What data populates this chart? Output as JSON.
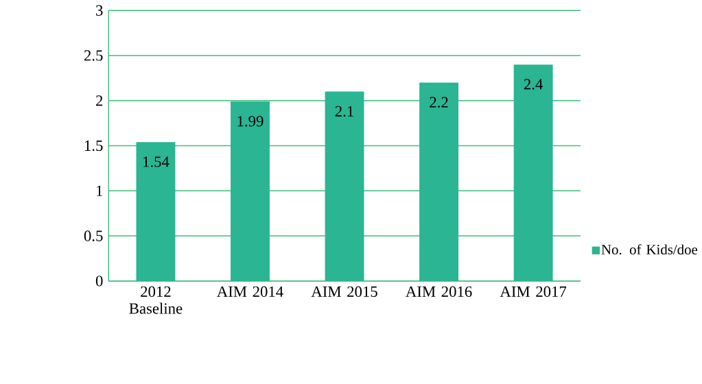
{
  "chart_data": {
    "type": "bar",
    "categories": [
      "2012 Baseline",
      "AIM 2014",
      "AIM 2015",
      "AIM 2016",
      "AIM 2017"
    ],
    "series": [
      {
        "name": "No. of Kids/doe",
        "color": "#2bb592",
        "values": [
          1.54,
          1.99,
          2.1,
          2.2,
          2.4
        ]
      }
    ],
    "ylim": [
      0,
      3
    ],
    "yticks": [
      0,
      0.5,
      1,
      1.5,
      2,
      2.5,
      3
    ],
    "grid": "y",
    "legend": "right",
    "data_labels": true
  }
}
